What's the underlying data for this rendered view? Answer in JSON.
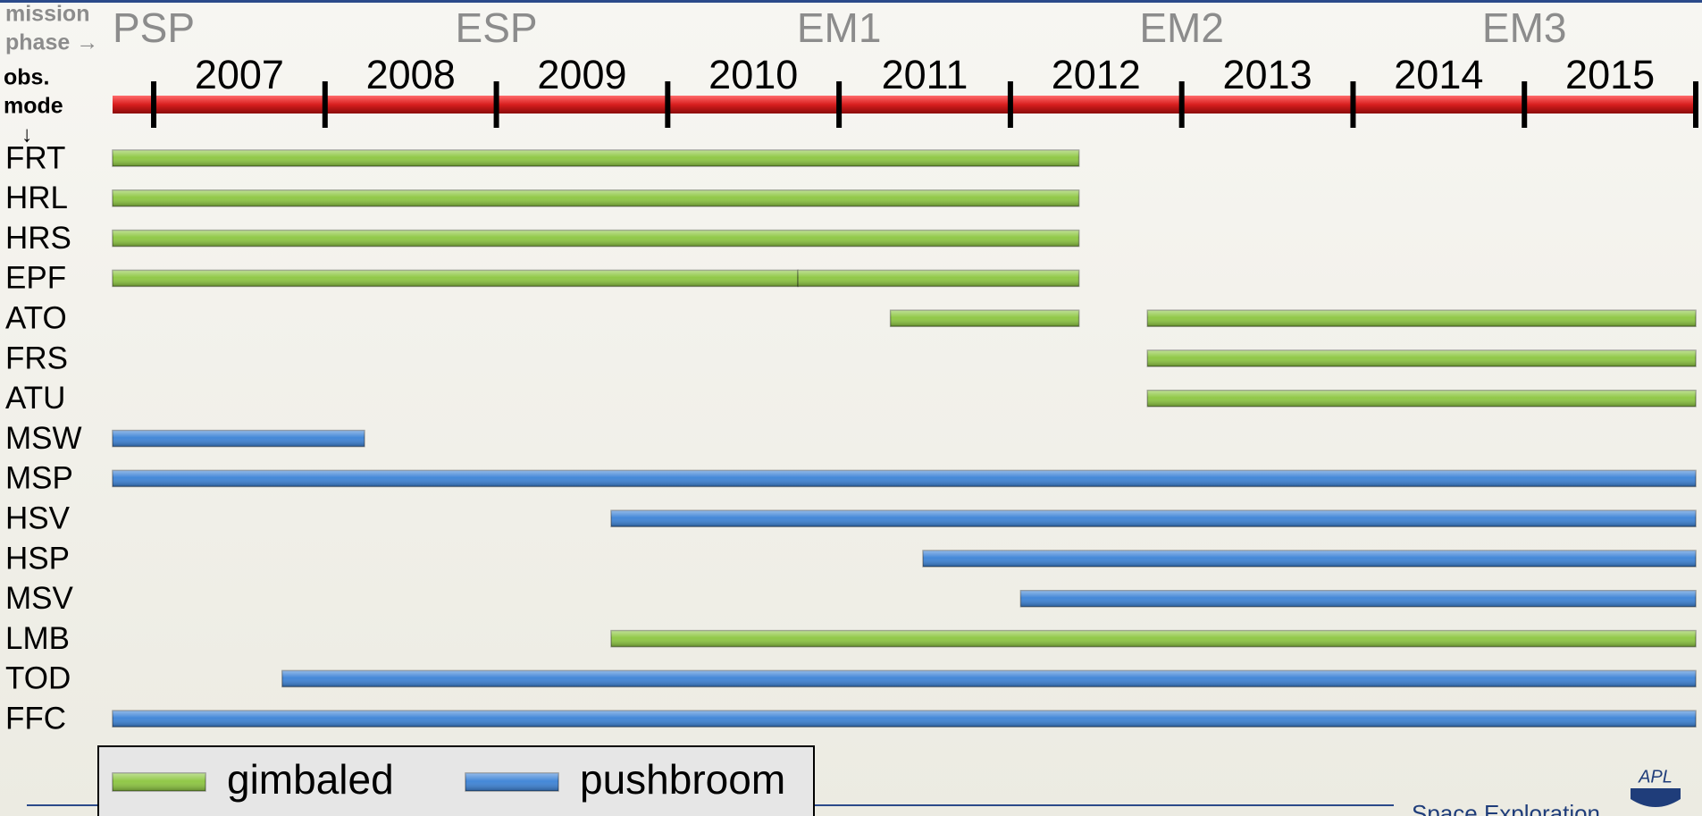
{
  "chart_data": {
    "type": "gantt",
    "phase_header": [
      "mission",
      "phase →"
    ],
    "mode_header": [
      "obs.",
      "mode",
      "↓"
    ],
    "phases": [
      {
        "name": "PSP",
        "year": 2007
      },
      {
        "name": "ESP",
        "year": 2009
      },
      {
        "name": "EM1",
        "year": 2011
      },
      {
        "name": "EM2",
        "year": 2013
      },
      {
        "name": "EM3",
        "year": 2015
      }
    ],
    "xlim": [
      2006.76,
      2016
    ],
    "xticks": [
      2007,
      2008,
      2009,
      2010,
      2011,
      2012,
      2013,
      2014,
      2015,
      2016
    ],
    "year_labels": [
      2007,
      2008,
      2009,
      2010,
      2011,
      2012,
      2013,
      2014,
      2015
    ],
    "series": [
      {
        "name": "gimbaled",
        "color": "#8cc63f"
      },
      {
        "name": "pushbroom",
        "color": "#3b82d6"
      }
    ],
    "rows": [
      {
        "name": "FRT",
        "segments": [
          {
            "start": 2006.76,
            "end": 2012.4,
            "series": 0
          }
        ]
      },
      {
        "name": "HRL",
        "segments": [
          {
            "start": 2006.76,
            "end": 2012.4,
            "series": 0
          }
        ]
      },
      {
        "name": "HRS",
        "segments": [
          {
            "start": 2006.76,
            "end": 2012.4,
            "series": 0
          }
        ]
      },
      {
        "name": "EPF",
        "segments": [
          {
            "start": 2006.76,
            "end": 2010.76,
            "series": 0
          },
          {
            "start": 2010.76,
            "end": 2012.4,
            "series": 0
          }
        ]
      },
      {
        "name": "ATO",
        "segments": [
          {
            "start": 2011.3,
            "end": 2012.4,
            "series": 0
          },
          {
            "start": 2012.8,
            "end": 2016,
            "series": 0
          }
        ]
      },
      {
        "name": "FRS",
        "segments": [
          {
            "start": 2012.8,
            "end": 2016,
            "series": 0
          }
        ]
      },
      {
        "name": "ATU",
        "segments": [
          {
            "start": 2012.8,
            "end": 2016,
            "series": 0
          }
        ]
      },
      {
        "name": "MSW",
        "segments": [
          {
            "start": 2006.76,
            "end": 2008.23,
            "series": 1
          }
        ]
      },
      {
        "name": "MSP",
        "segments": [
          {
            "start": 2006.76,
            "end": 2016,
            "series": 1
          }
        ]
      },
      {
        "name": "HSV",
        "segments": [
          {
            "start": 2009.67,
            "end": 2016,
            "series": 1
          }
        ]
      },
      {
        "name": "HSP",
        "segments": [
          {
            "start": 2011.49,
            "end": 2016,
            "series": 1
          }
        ]
      },
      {
        "name": "MSV",
        "segments": [
          {
            "start": 2012.06,
            "end": 2016,
            "series": 1
          }
        ]
      },
      {
        "name": "LMB",
        "segments": [
          {
            "start": 2009.67,
            "end": 2016,
            "series": 0
          }
        ]
      },
      {
        "name": "TOD",
        "segments": [
          {
            "start": 2007.75,
            "end": 2016,
            "series": 1
          }
        ]
      },
      {
        "name": "FFC",
        "segments": [
          {
            "start": 2006.76,
            "end": 2016,
            "series": 1
          }
        ]
      }
    ],
    "footer": "Space Exploration",
    "logo": "APL"
  }
}
